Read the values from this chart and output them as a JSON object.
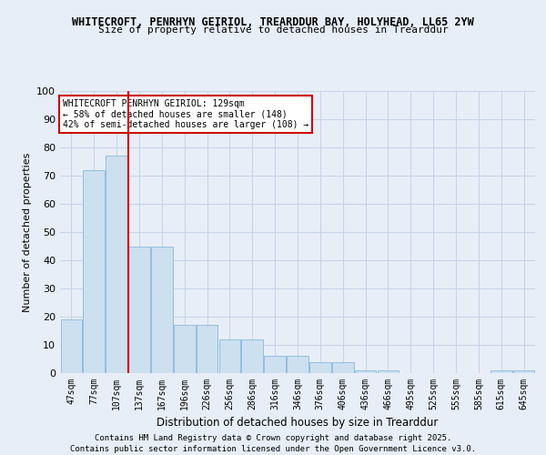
{
  "title1": "WHITECROFT, PENRHYN GEIRIOL, TREARDDUR BAY, HOLYHEAD, LL65 2YW",
  "title2": "Size of property relative to detached houses in Trearddur",
  "xlabel": "Distribution of detached houses by size in Trearddur",
  "ylabel": "Number of detached properties",
  "categories": [
    "47sqm",
    "77sqm",
    "107sqm",
    "137sqm",
    "167sqm",
    "196sqm",
    "226sqm",
    "256sqm",
    "286sqm",
    "316sqm",
    "346sqm",
    "376sqm",
    "406sqm",
    "436sqm",
    "466sqm",
    "495sqm",
    "525sqm",
    "555sqm",
    "585sqm",
    "615sqm",
    "645sqm"
  ],
  "values": [
    19,
    72,
    77,
    45,
    45,
    17,
    17,
    12,
    12,
    6,
    6,
    4,
    4,
    1,
    1,
    0,
    0,
    0,
    0,
    1,
    1
  ],
  "bar_color": "#cce0f0",
  "bar_edge_color": "#8ab8d8",
  "vline_color": "#cc0000",
  "vline_pos": 2.5,
  "annotation_text": "WHITECROFT PENRHYN GEIRIOL: 129sqm\n← 58% of detached houses are smaller (148)\n42% of semi-detached houses are larger (108) →",
  "annotation_box_color": "#cc0000",
  "ylim": [
    0,
    100
  ],
  "yticks": [
    0,
    10,
    20,
    30,
    40,
    50,
    60,
    70,
    80,
    90,
    100
  ],
  "grid_color": "#c8d4e8",
  "bg_color": "#e8eef8",
  "footer1": "Contains HM Land Registry data © Crown copyright and database right 2025.",
  "footer2": "Contains public sector information licensed under the Open Government Licence v3.0."
}
